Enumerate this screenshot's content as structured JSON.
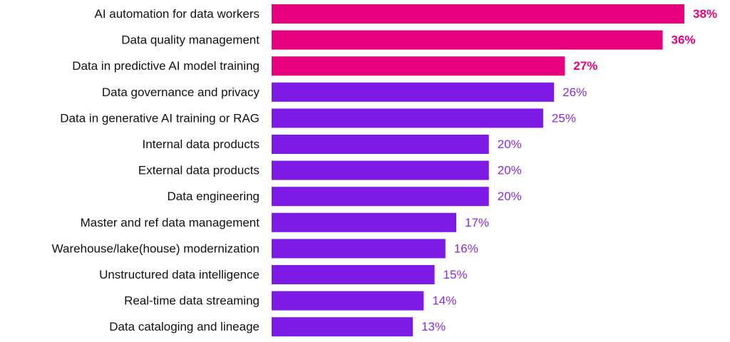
{
  "chart_data": {
    "type": "bar",
    "orientation": "horizontal",
    "title": "",
    "xlabel": "",
    "ylabel": "",
    "xlim": [
      0,
      38
    ],
    "grid": false,
    "legend": "none",
    "categories": [
      "AI automation for data workers",
      "Data quality management",
      "Data in predictive AI model training",
      "Data governance and privacy",
      "Data in generative AI training or RAG",
      "Internal data products",
      "External data products",
      "Data engineering",
      "Master and ref data management",
      "Warehouse/lake(house) modernization",
      "Unstructured data intelligence",
      "Real-time data streaming",
      "Data cataloging and lineage"
    ],
    "values": [
      38,
      36,
      27,
      26,
      25,
      20,
      20,
      20,
      17,
      16,
      15,
      14,
      13
    ],
    "value_labels": [
      "38%",
      "36%",
      "27%",
      "26%",
      "25%",
      "20%",
      "20%",
      "20%",
      "17%",
      "16%",
      "15%",
      "14%",
      "13%"
    ],
    "highlight_count": 3,
    "colors": {
      "highlight": "#E6007E",
      "default": "#7E1AE6",
      "highlight_label": "#E6007E",
      "default_label": "#8A2BE2",
      "category_text": "#111111"
    }
  }
}
